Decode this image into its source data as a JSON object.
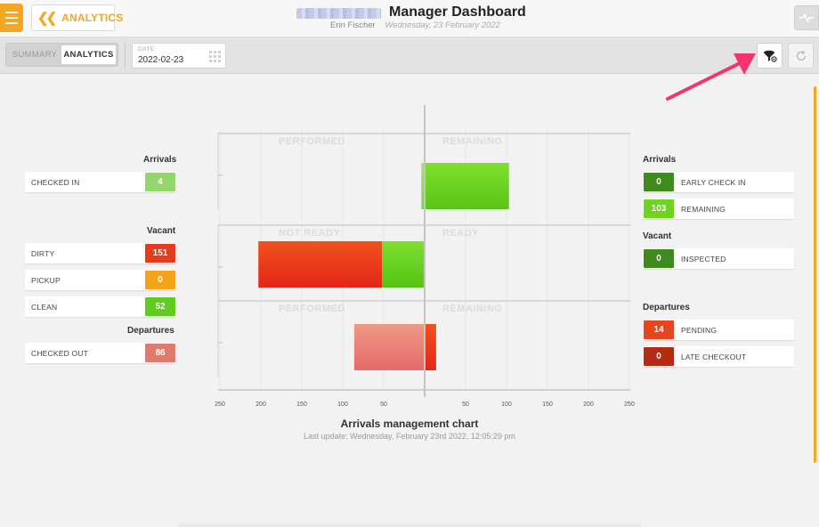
{
  "header": {
    "menu_icon": "hamburger-icon",
    "back_label": "ANALYTICS",
    "title": "Manager Dashboard",
    "user": "Erin Fischer",
    "date": "Wednesday, 23 February 2022",
    "pulse_icon": "activity-icon"
  },
  "toolbar": {
    "tabs": [
      {
        "label": "SUMMARY",
        "active": false
      },
      {
        "label": "ANALYTICS",
        "active": true
      }
    ],
    "date_label": "DATE",
    "date_value": "2022-02-23",
    "filter_icon": "filter-icon",
    "refresh_icon": "refresh-icon"
  },
  "left_panel": {
    "arrivals_title": "Arrivals",
    "arrivals": [
      {
        "label": "CHECKED IN",
        "value": "4",
        "color": "#93d66d"
      }
    ],
    "vacant_title": "Vacant",
    "vacant": [
      {
        "label": "DIRTY",
        "value": "151",
        "color": "#e53b1d"
      },
      {
        "label": "PICKUP",
        "value": "0",
        "color": "#f5a318"
      },
      {
        "label": "CLEAN",
        "value": "52",
        "color": "#5fcc1f"
      }
    ],
    "departures_title": "Departures",
    "departures": [
      {
        "label": "CHECKED OUT",
        "value": "86",
        "color": "#e07a6f"
      }
    ]
  },
  "right_panel": {
    "arrivals_title": "Arrivals",
    "arrivals": [
      {
        "label": "EARLY CHECK IN",
        "value": "0",
        "color": "#3f8a1c"
      },
      {
        "label": "REMAINING",
        "value": "103",
        "color": "#6fd41f"
      }
    ],
    "vacant_title": "Vacant",
    "vacant": [
      {
        "label": "INSPECTED",
        "value": "0",
        "color": "#3f8a1c"
      }
    ],
    "departures_title": "Departures",
    "departures": [
      {
        "label": "PENDING",
        "value": "14",
        "color": "#e5451f"
      },
      {
        "label": "LATE CHECKOUT",
        "value": "0",
        "color": "#b52a12"
      }
    ]
  },
  "chart_data": {
    "type": "bar",
    "orientation": "horizontal-diverging",
    "title": "Arrivals management chart",
    "last_update": "Last update: Wednesday, February 23rd 2022, 12:05:29 pm",
    "xlim": [
      -250,
      250
    ],
    "ticks": [
      "250",
      "200",
      "150",
      "100",
      "50",
      "",
      "50",
      "100",
      "150",
      "200",
      "250"
    ],
    "tick_values": [
      -250,
      -200,
      -150,
      -100,
      -50,
      0,
      50,
      100,
      150,
      200,
      250
    ],
    "panels": [
      {
        "left_label": "PERFORMED",
        "right_label": "REMAINING",
        "segments": [
          {
            "name": "Checked in",
            "from": -4,
            "to": 0,
            "color_a": "#a6e07e",
            "color_b": "#83c95a"
          },
          {
            "name": "Remaining",
            "from": 0,
            "to": 103,
            "color_a": "#7ee02e",
            "color_b": "#5bc417"
          }
        ]
      },
      {
        "left_label": "NOT READY",
        "right_label": "READY",
        "segments": [
          {
            "name": "Dirty",
            "from": -203,
            "to": -52,
            "color_a": "#f0521c",
            "color_b": "#e3261a"
          },
          {
            "name": "Clean",
            "from": -52,
            "to": 0,
            "color_a": "#7ee02e",
            "color_b": "#55c215"
          }
        ]
      },
      {
        "left_label": "PERFORMED",
        "right_label": "REMAINING",
        "segments": [
          {
            "name": "Checked out",
            "from": -86,
            "to": 0,
            "color_a": "#ed9a85",
            "color_b": "#e66a6a"
          },
          {
            "name": "Pending",
            "from": 0,
            "to": 14,
            "color_a": "#f0521c",
            "color_b": "#e3261a"
          }
        ]
      }
    ]
  }
}
